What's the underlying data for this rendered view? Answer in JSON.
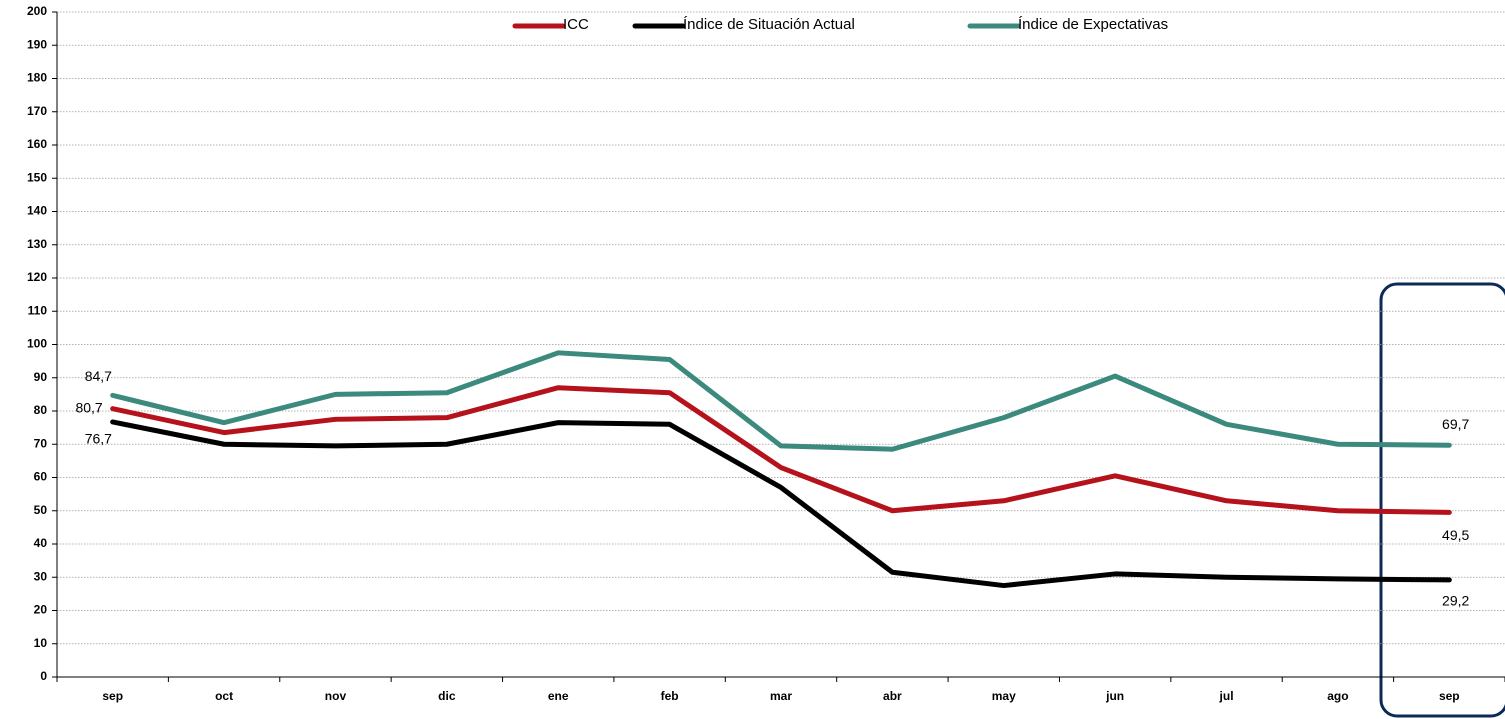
{
  "chart_data": {
    "type": "line",
    "categories": [
      "sep",
      "oct",
      "nov",
      "dic",
      "ene",
      "feb",
      "mar",
      "abr",
      "may",
      "jun",
      "jul",
      "ago",
      "sep"
    ],
    "series": [
      {
        "name": "ICC",
        "color": "#b5121b",
        "values": [
          80.7,
          73.5,
          77.5,
          78,
          87,
          85.5,
          63,
          50,
          53,
          60.5,
          53,
          50,
          49.5
        ],
        "value_labels": [
          "80,7",
          null,
          null,
          null,
          null,
          null,
          null,
          null,
          null,
          null,
          null,
          null,
          "49,5"
        ]
      },
      {
        "name": "Índice de Situación Actual",
        "color": "#000000",
        "values": [
          76.7,
          70,
          69.5,
          70,
          76.5,
          76,
          57,
          31.5,
          27.5,
          31,
          30,
          29.5,
          29.2
        ],
        "value_labels": [
          "76,7",
          null,
          null,
          null,
          null,
          null,
          null,
          null,
          null,
          null,
          null,
          null,
          "29,2"
        ]
      },
      {
        "name": "Índice de Expectativas",
        "color": "#3b8a7d",
        "values": [
          84.7,
          76.5,
          85,
          85.5,
          97.5,
          95.5,
          69.5,
          68.5,
          78,
          90.5,
          76,
          70,
          69.7
        ],
        "value_labels": [
          "84,7",
          null,
          null,
          null,
          null,
          null,
          null,
          null,
          null,
          null,
          null,
          null,
          "69,7"
        ]
      }
    ],
    "ylim": [
      0,
      200
    ],
    "yticks": [
      0,
      10,
      20,
      30,
      40,
      50,
      60,
      70,
      80,
      90,
      100,
      110,
      120,
      130,
      140,
      150,
      160,
      170,
      180,
      190,
      200
    ],
    "grid": true,
    "legend": "top"
  }
}
